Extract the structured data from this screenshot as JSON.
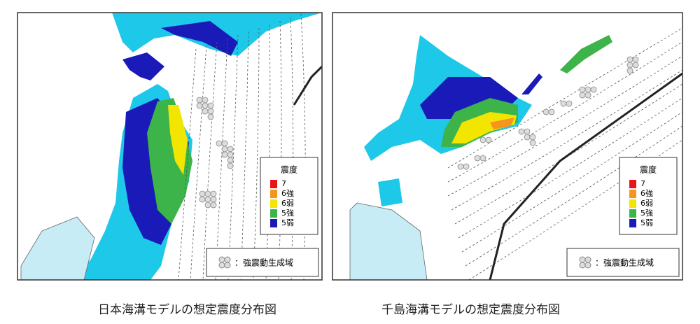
{
  "maps": [
    {
      "caption": "日本海溝モデルの想定震度分布図",
      "legend": {
        "title": "震度",
        "levels": [
          {
            "label": "7",
            "color": "#e8141c"
          },
          {
            "label": "6強",
            "color": "#f7941d"
          },
          {
            "label": "6弱",
            "color": "#f2e600"
          },
          {
            "label": "5強",
            "color": "#3cb44a"
          },
          {
            "label": "5弱",
            "color": "#1a1ab8"
          }
        ],
        "note": "：強震動生成域"
      }
    },
    {
      "caption": "千島海溝モデルの想定震度分布図",
      "legend": {
        "title": "震度",
        "levels": [
          {
            "label": "7",
            "color": "#e8141c"
          },
          {
            "label": "6強",
            "color": "#f7941d"
          },
          {
            "label": "6弱",
            "color": "#f2e600"
          },
          {
            "label": "5強",
            "color": "#3cb44a"
          },
          {
            "label": "5弱",
            "color": "#1a1ab8"
          }
        ],
        "note": "：強震動生成域"
      }
    }
  ]
}
